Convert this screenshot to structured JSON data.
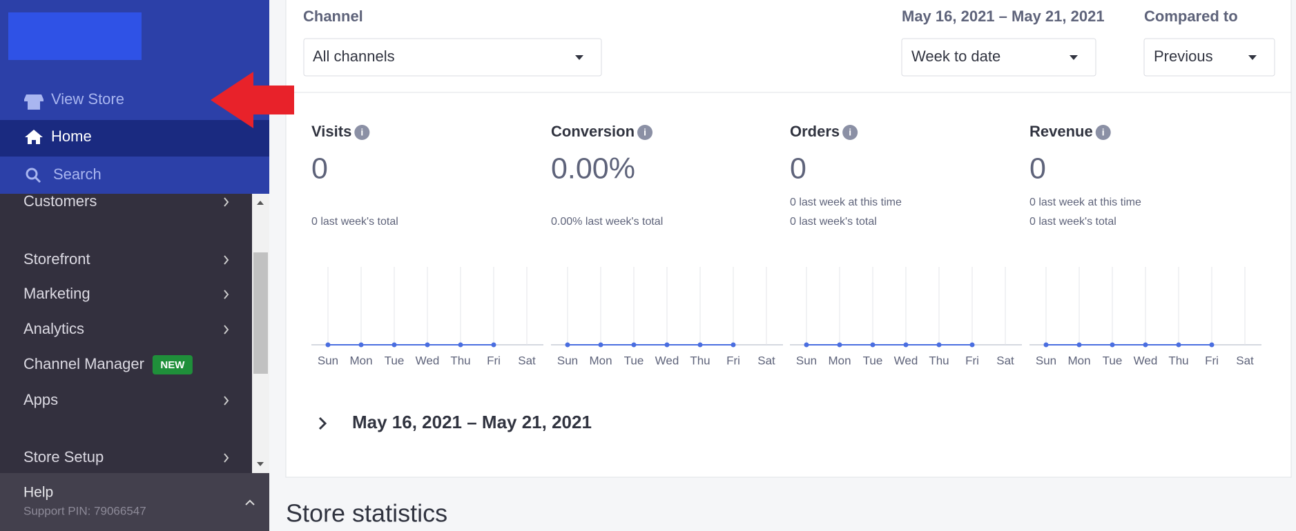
{
  "sidebar": {
    "view_store": "View Store",
    "home": "Home",
    "search": "Search",
    "items": [
      "Customers",
      "Storefront",
      "Marketing",
      "Analytics",
      "Channel Manager",
      "Apps",
      "Store Setup"
    ],
    "new_badge": "NEW",
    "help": "Help",
    "support_pin": "Support PIN: 79066547"
  },
  "filters": {
    "channel_label": "Channel",
    "channel_value": "All channels",
    "date_range": "May 16, 2021 – May 21, 2021",
    "period_value": "Week to date",
    "compared_label": "Compared to",
    "compared_value": "Previous"
  },
  "metrics": [
    {
      "title": "Visits",
      "value": "0",
      "notes": [
        "0 last week's total"
      ],
      "chart_data": {
        "type": "line",
        "categories": [
          "Sun",
          "Mon",
          "Tue",
          "Wed",
          "Thu",
          "Fri",
          "Sat"
        ],
        "values": [
          0,
          0,
          0,
          0,
          0,
          0,
          null
        ]
      }
    },
    {
      "title": "Conversion",
      "value": "0.00%",
      "notes": [
        "0.00% last week's total"
      ],
      "chart_data": {
        "type": "line",
        "categories": [
          "Sun",
          "Mon",
          "Tue",
          "Wed",
          "Thu",
          "Fri",
          "Sat"
        ],
        "values": [
          0,
          0,
          0,
          0,
          0,
          0,
          null
        ]
      }
    },
    {
      "title": "Orders",
      "value": "0",
      "notes": [
        "0 last week at this time",
        "0 last week's total"
      ],
      "chart_data": {
        "type": "line",
        "categories": [
          "Sun",
          "Mon",
          "Tue",
          "Wed",
          "Thu",
          "Fri",
          "Sat"
        ],
        "values": [
          0,
          0,
          0,
          0,
          0,
          0,
          null
        ]
      }
    },
    {
      "title": "Revenue",
      "value": "0",
      "notes": [
        "0 last week at this time",
        "0 last week's total"
      ],
      "chart_data": {
        "type": "line",
        "categories": [
          "Sun",
          "Mon",
          "Tue",
          "Wed",
          "Thu",
          "Fri",
          "Sat"
        ],
        "values": [
          0,
          0,
          0,
          0,
          0,
          0,
          null
        ]
      }
    }
  ],
  "summary_range": "May 16, 2021 – May 21, 2021",
  "section_title": "Store statistics"
}
